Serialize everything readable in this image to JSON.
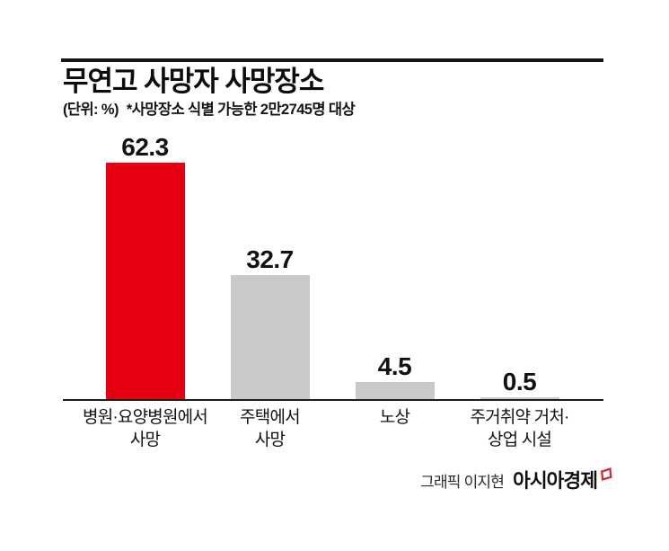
{
  "header": {
    "title": "무연고 사망자 사망장소",
    "unit_label": "(단위: %)",
    "note": "*사망장소 식별 가능한 2만2745명 대상"
  },
  "chart_data": {
    "type": "bar",
    "title": "무연고 사망자 사망장소",
    "unit": "%",
    "note": "사망장소 식별 가능한 2만2745명 대상",
    "categories": [
      "병원·요양병원에서 사망",
      "주택에서 사망",
      "노상",
      "주거취약 거처·상업 시설"
    ],
    "values": [
      62.3,
      32.7,
      4.5,
      0.5
    ],
    "highlight_color": "#e60012",
    "default_color": "#c9c9ca",
    "axis_color": "#1e1e1e",
    "grid": false,
    "value_labels_shown": true,
    "ylim": [
      0,
      70
    ],
    "bars": [
      {
        "value": "62.3",
        "label_lines": [
          "병원·요양병원에서",
          "사망"
        ],
        "color": "#e60012"
      },
      {
        "value": "32.7",
        "label_lines": [
          "주택에서",
          "사망"
        ],
        "color": "#c9c9ca"
      },
      {
        "value": "4.5",
        "label_lines": [
          "노상"
        ],
        "color": "#c9c9ca"
      },
      {
        "value": "0.5",
        "label_lines": [
          "주거취약 거처·",
          "상업 시설"
        ],
        "color": "#c9c9ca"
      }
    ]
  },
  "footer": {
    "credit": "그래픽 이지현",
    "brand": "아시아경제",
    "brand_mark_color": "#cf2b3a"
  }
}
